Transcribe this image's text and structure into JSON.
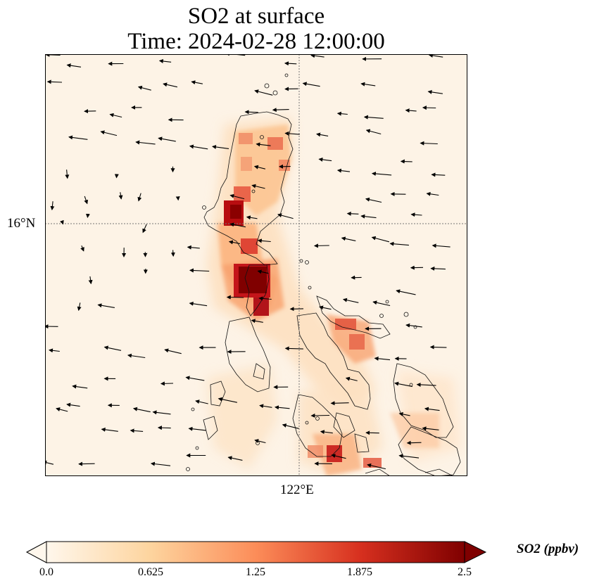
{
  "title": {
    "line1": "SO2 at surface",
    "line2": "Time: 2024-02-28 12:00:00"
  },
  "map": {
    "lat_label": "16°N",
    "lon_label": "122°E",
    "lat_gridline_deg": 16,
    "lon_gridline_deg": 122,
    "extent": {
      "lon_min": 119.6,
      "lon_max": 123.6,
      "lat_min": 12.9,
      "lat_max": 17.2
    },
    "colormap": "OrRd",
    "background_color": "#fdf3e6"
  },
  "colorbar": {
    "label": "SO2 (ppbv)",
    "min": 0.0,
    "max": 2.5,
    "ticks": [
      "0.0",
      "0.625",
      "1.25",
      "1.875",
      "2.5"
    ],
    "colors": [
      "#fff7ec",
      "#fdd49e",
      "#fc8d59",
      "#d7301f",
      "#7f0000"
    ],
    "extend": "both"
  }
}
